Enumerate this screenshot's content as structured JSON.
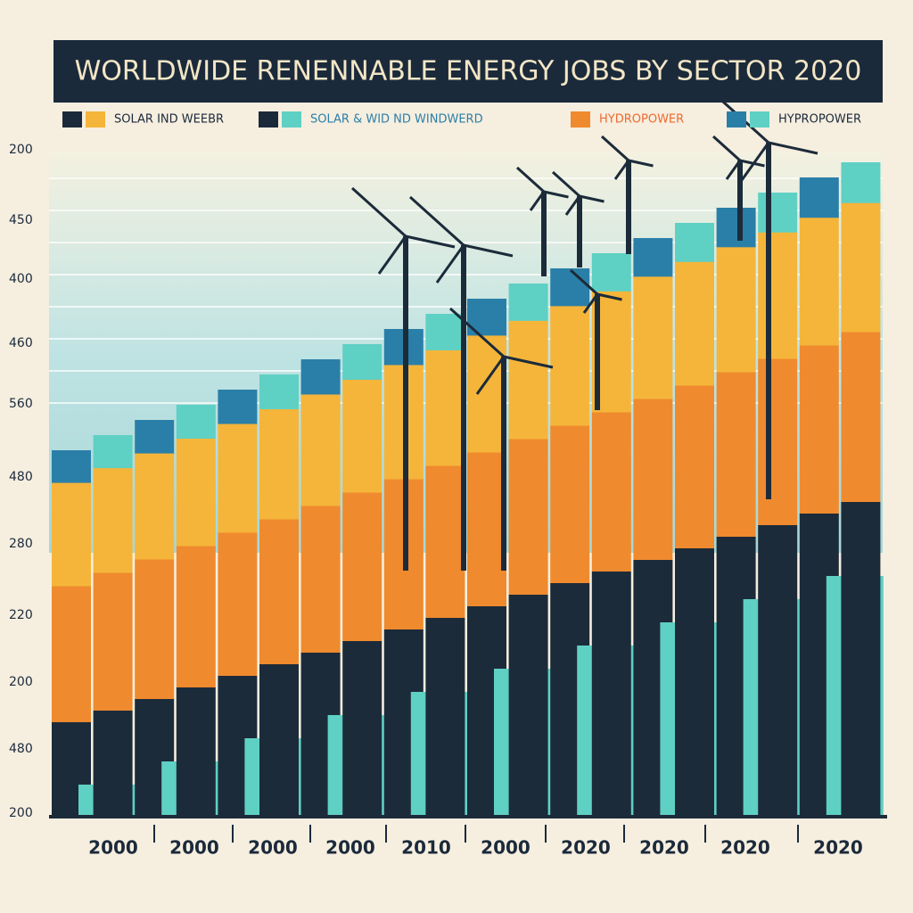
{
  "title": "WORLDWIDE RENENNABLE ENERGY JOBS BY SECTOR 2020",
  "legend": [
    "SOLAR IND WEEBR",
    "SOLAR & WID ND WINDWERD",
    "HYDROPOWER",
    "HYPROPOWER"
  ],
  "y_labels": [
    "200",
    "450",
    "400",
    "460",
    "560",
    "480",
    "280",
    "220",
    "200",
    "480",
    "200"
  ],
  "x_labels": [
    "2000",
    "2000",
    "2000",
    "2000",
    "2010",
    "2000",
    "2020",
    "2020",
    "2020",
    "2020"
  ]
}
